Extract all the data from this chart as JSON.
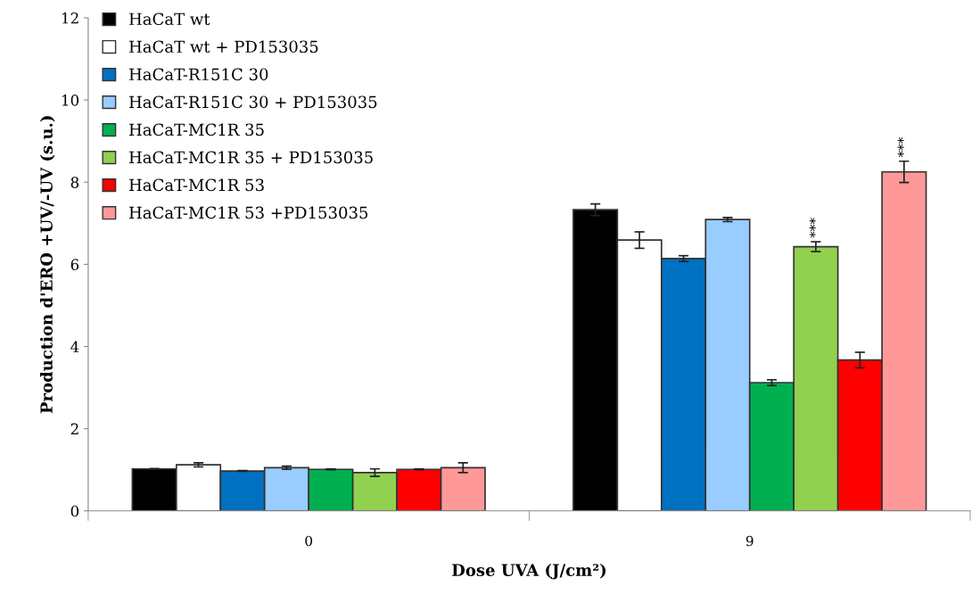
{
  "chart_data": {
    "type": "bar",
    "xlabel": "Dose UVA (J/cm²)",
    "ylabel": "Production d'ERO +UV/-UV (s.u.)",
    "categories": [
      "0",
      "9"
    ],
    "series": [
      {
        "name": "HaCaT wt",
        "color": "#000000",
        "values": [
          1.02,
          7.33
        ],
        "errors": [
          0.01,
          0.14
        ]
      },
      {
        "name": "HaCaT wt + PD153035",
        "color": "#ffffff",
        "values": [
          1.12,
          6.59
        ],
        "errors": [
          0.05,
          0.2
        ]
      },
      {
        "name": "HaCaT-R151C 30",
        "color": "#0070c0",
        "values": [
          0.97,
          6.14
        ],
        "errors": [
          0.01,
          0.07
        ]
      },
      {
        "name": "HaCaT-R151C 30 + PD153035",
        "color": "#99ccff",
        "values": [
          1.05,
          7.09
        ],
        "errors": [
          0.04,
          0.05
        ]
      },
      {
        "name": "HaCaT-MC1R 35",
        "color": "#00b050",
        "values": [
          1.01,
          3.12
        ],
        "errors": [
          0.01,
          0.07
        ]
      },
      {
        "name": "HaCaT-MC1R 35 + PD153035",
        "color": "#92d050",
        "values": [
          0.93,
          6.43
        ],
        "errors": [
          0.09,
          0.12
        ],
        "value_labels": [
          null,
          "***"
        ]
      },
      {
        "name": "HaCaT-MC1R 53",
        "color": "#ff0000",
        "values": [
          1.01,
          3.67
        ],
        "errors": [
          0.01,
          0.19
        ]
      },
      {
        "name": "HaCaT-MC1R 53 +PD153035",
        "color": "#ff9999",
        "values": [
          1.05,
          8.25
        ],
        "errors": [
          0.12,
          0.26
        ],
        "value_labels": [
          null,
          "***"
        ]
      }
    ],
    "ylim": [
      0,
      12
    ],
    "yticks": [
      0,
      2,
      4,
      6,
      8,
      10,
      12
    ],
    "grid": false,
    "legend": "top left"
  }
}
